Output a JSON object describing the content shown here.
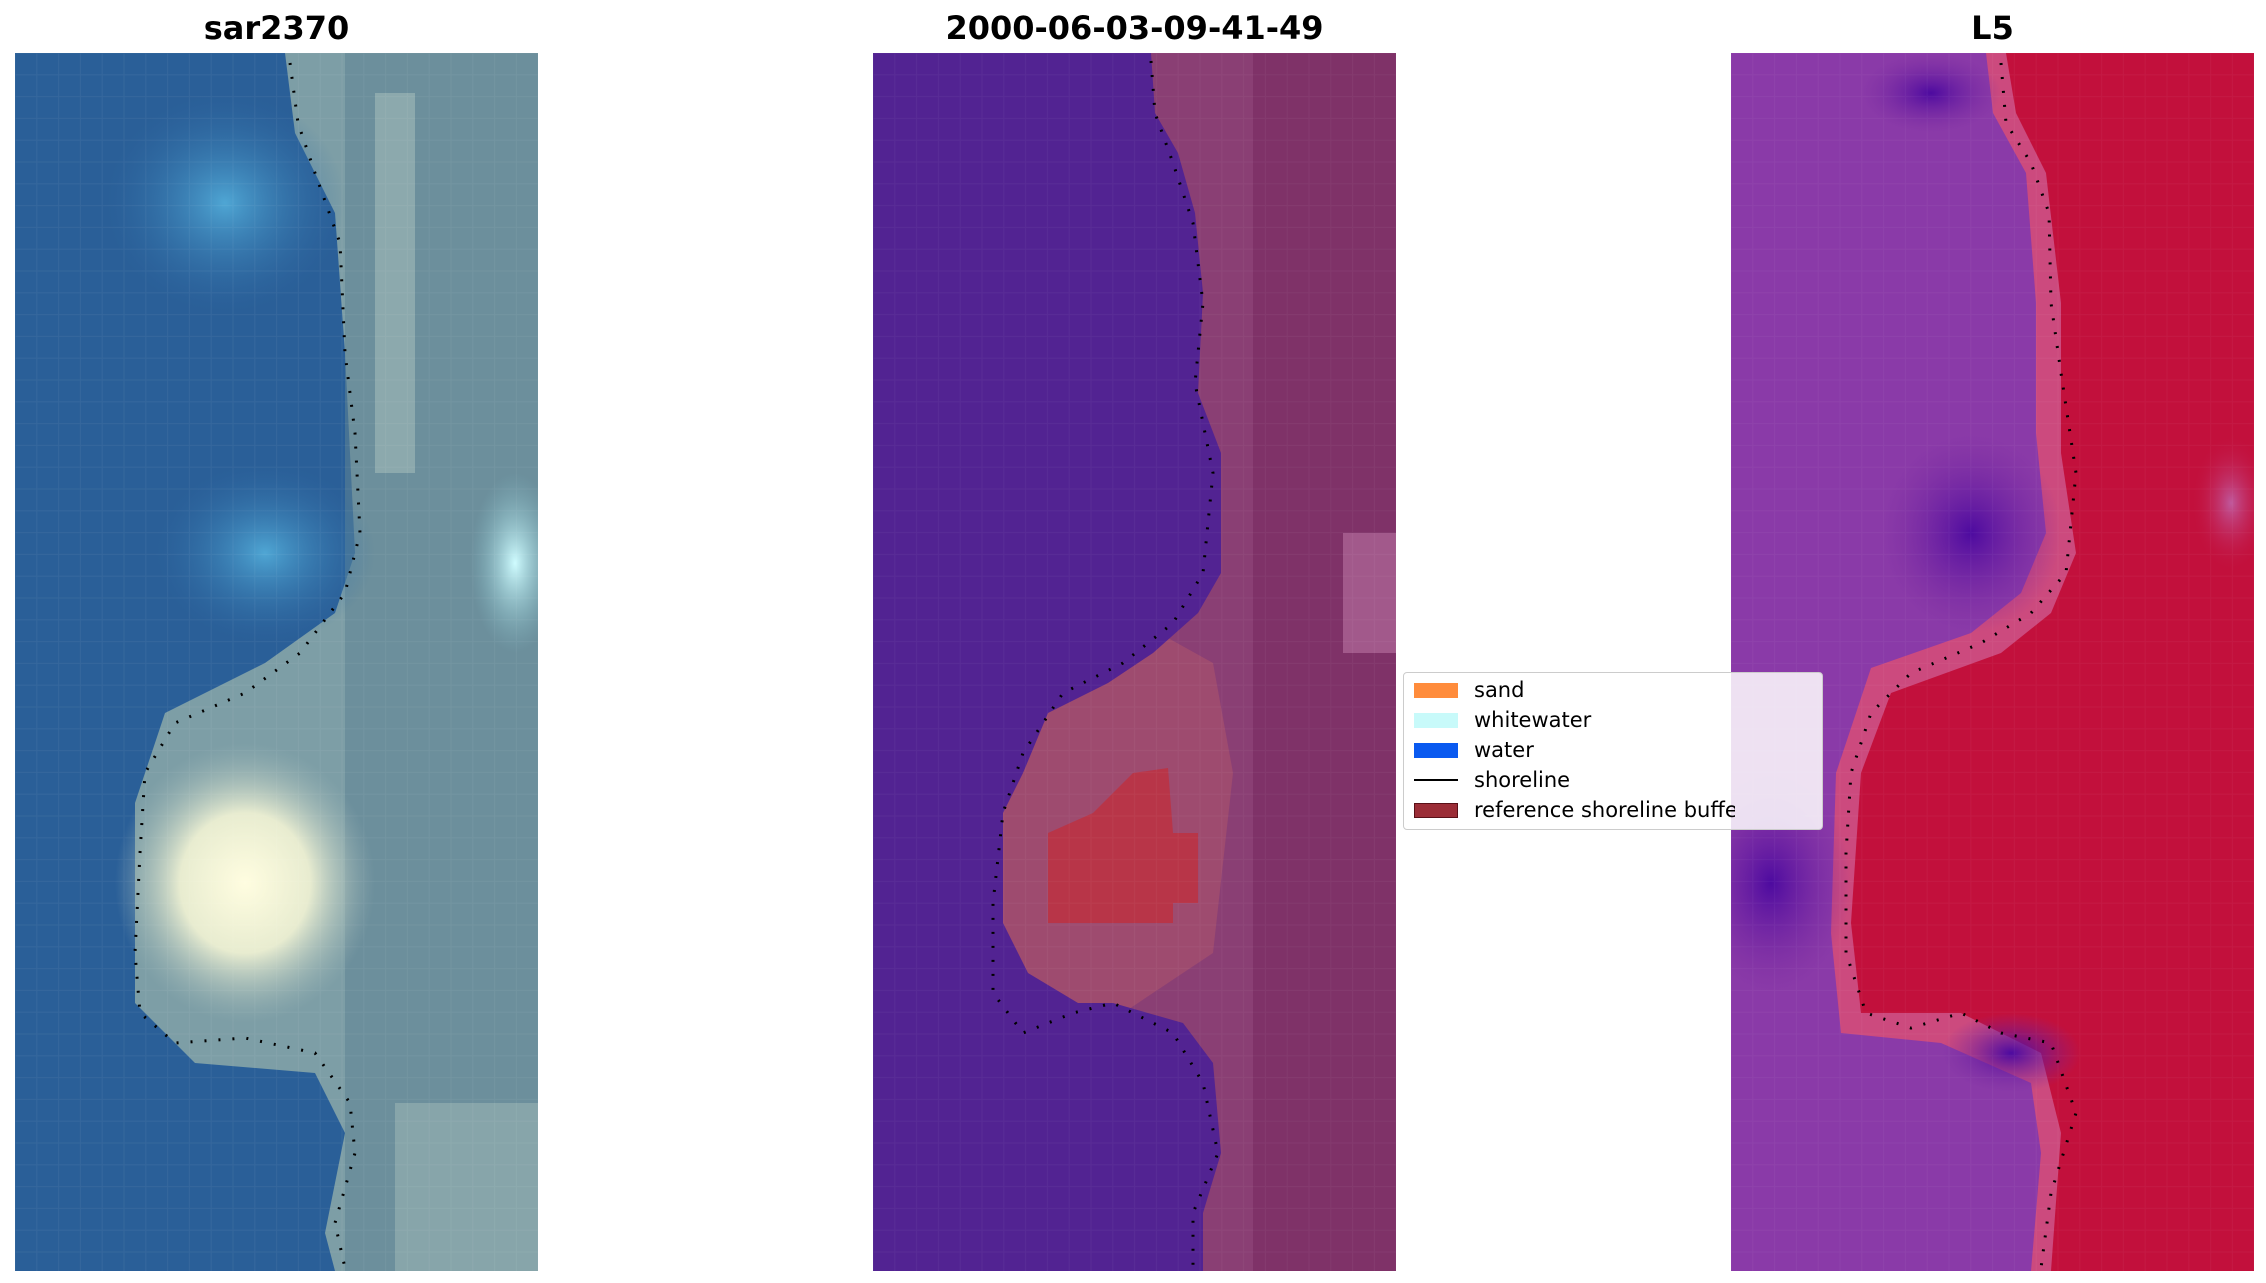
{
  "panels": [
    {
      "title": "sar2370",
      "rendering": "rgb-satellite-image"
    },
    {
      "title": "2000-06-03-09-41-49",
      "rendering": "classified-image"
    },
    {
      "title": "L5",
      "rendering": "index-image"
    }
  ],
  "legend": {
    "items": [
      {
        "label": "sand",
        "color": "#ff8c3c",
        "kind": "patch"
      },
      {
        "label": "whitewater",
        "color": "#c8fafa",
        "kind": "patch"
      },
      {
        "label": "water",
        "color": "#0a5af0",
        "kind": "patch"
      },
      {
        "label": "shoreline",
        "color": "#000000",
        "kind": "line"
      },
      {
        "label": "reference shoreline buffer",
        "color": "#9b2d37",
        "kind": "patch"
      }
    ]
  },
  "colors": {
    "sar_water": "#2f6aa3",
    "sar_beach": "#8fb0b4",
    "class_water": "#522392",
    "class_land": "#8a3a72",
    "class_buffer": "#b83548",
    "index_low": "#6a1ea0",
    "index_high": "#c2103c"
  }
}
